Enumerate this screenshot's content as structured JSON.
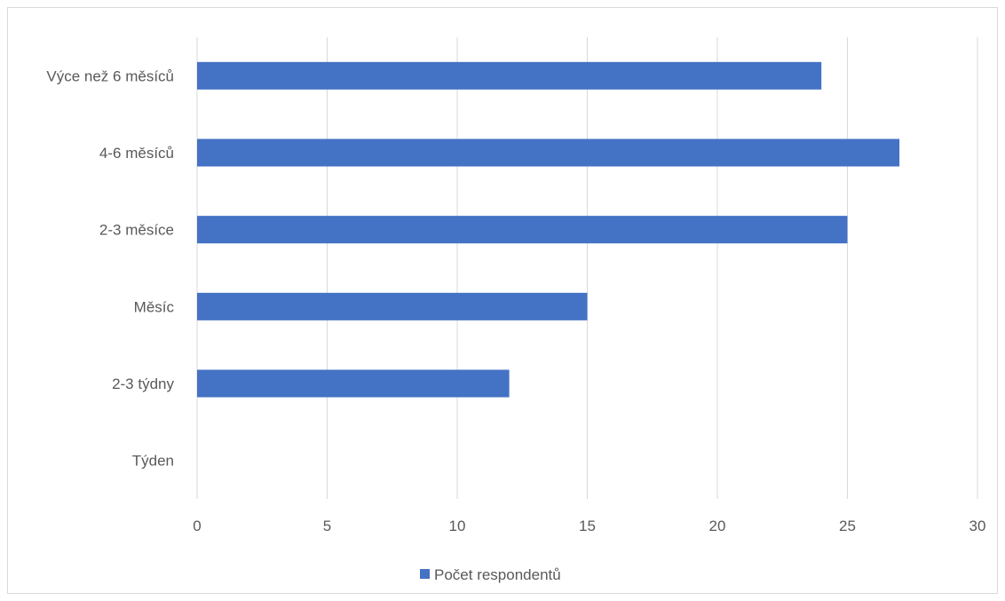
{
  "chart_data": {
    "type": "bar",
    "orientation": "horizontal",
    "categories": [
      "Výce než 6 měsíců",
      "4-6 měsíců",
      "2-3 měsíce",
      "Měsíc",
      "2-3 týdny",
      "Týden"
    ],
    "series": [
      {
        "name": "Počet respondentů",
        "values": [
          24,
          27,
          25,
          15,
          12,
          0
        ],
        "color": "#4472c4"
      }
    ],
    "xlim": [
      0,
      30
    ],
    "xticks": [
      0,
      5,
      10,
      15,
      20,
      25,
      30
    ],
    "grid": true,
    "legend_position": "bottom",
    "title": "",
    "xlabel": "",
    "ylabel": ""
  }
}
